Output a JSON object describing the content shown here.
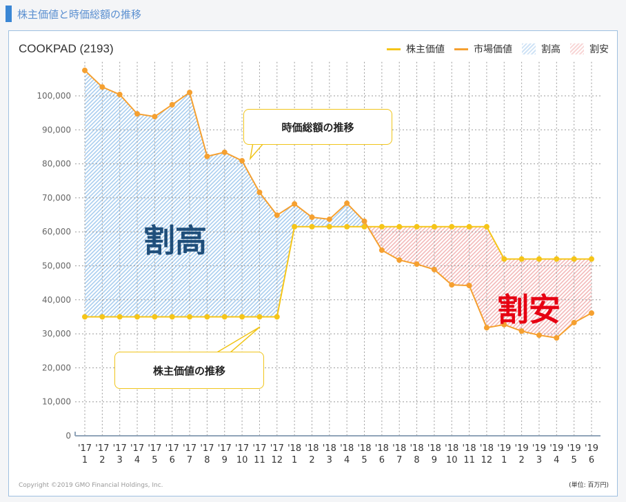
{
  "header": {
    "title": "株主価値と時価総額の推移"
  },
  "chart_data": {
    "type": "line",
    "title": "COOKPAD (2193)",
    "legend": {
      "placement": "top-right",
      "entries": [
        {
          "label": "株主価値",
          "kind": "line",
          "color": "#f5c518"
        },
        {
          "label": "市場価値",
          "kind": "line",
          "color": "#f5a030"
        },
        {
          "label": "割高",
          "kind": "hatch",
          "color": "#a8cdef"
        },
        {
          "label": "割安",
          "kind": "hatch",
          "color": "#f3b8b8"
        }
      ]
    },
    "x_tick_labels": [
      [
        "'17",
        "1"
      ],
      [
        "'17",
        "2"
      ],
      [
        "'17",
        "3"
      ],
      [
        "'17",
        "4"
      ],
      [
        "'17",
        "5"
      ],
      [
        "'17",
        "6"
      ],
      [
        "'17",
        "7"
      ],
      [
        "'17",
        "8"
      ],
      [
        "'17",
        "9"
      ],
      [
        "'17",
        "10"
      ],
      [
        "'17",
        "11"
      ],
      [
        "'17",
        "12"
      ],
      [
        "'18",
        "1"
      ],
      [
        "'18",
        "2"
      ],
      [
        "'18",
        "3"
      ],
      [
        "'18",
        "4"
      ],
      [
        "'18",
        "5"
      ],
      [
        "'18",
        "6"
      ],
      [
        "'18",
        "7"
      ],
      [
        "'18",
        "8"
      ],
      [
        "'18",
        "9"
      ],
      [
        "'18",
        "10"
      ],
      [
        "'18",
        "11"
      ],
      [
        "'18",
        "12"
      ],
      [
        "'19",
        "1"
      ],
      [
        "'19",
        "2"
      ],
      [
        "'19",
        "3"
      ],
      [
        "'19",
        "4"
      ],
      [
        "'19",
        "5"
      ],
      [
        "'19",
        "6"
      ]
    ],
    "y_ticks": [
      "0",
      "10,000",
      "20,000",
      "30,000",
      "40,000",
      "50,000",
      "60,000",
      "70,000",
      "80,000",
      "90,000",
      "100,000"
    ],
    "ylim": [
      0,
      110000
    ],
    "grid": true,
    "series": [
      {
        "name": "株主価値",
        "color": "#f5c518",
        "values": [
          35000,
          35000,
          35000,
          35000,
          35000,
          35000,
          35000,
          35000,
          35000,
          35000,
          35000,
          35000,
          61500,
          61500,
          61500,
          61500,
          61500,
          61500,
          61500,
          61500,
          61500,
          61500,
          61500,
          61500,
          52000,
          52000,
          52000,
          52000,
          52000,
          52000
        ]
      },
      {
        "name": "市場価値",
        "color": "#f5a030",
        "values": [
          107500,
          102600,
          100400,
          94700,
          93900,
          97400,
          101000,
          82200,
          83400,
          80900,
          71600,
          64900,
          68200,
          64300,
          63700,
          68400,
          63100,
          54600,
          51700,
          50500,
          48900,
          44400,
          44200,
          31800,
          32700,
          30800,
          29600,
          28800,
          33300,
          36100
        ]
      }
    ],
    "annotations": {
      "market_callout": "時価総額の推移",
      "holder_callout": "株主価値の推移",
      "overvalued": "割高",
      "undervalued": "割安"
    },
    "colors": {
      "overvalued_text": "#1f4e7a",
      "undervalued_text": "#e60012"
    }
  },
  "footer": {
    "copyright": "Copyright ©2019 GMO Financial Holdings, Inc.",
    "unit": "(単位: 百万円)"
  }
}
